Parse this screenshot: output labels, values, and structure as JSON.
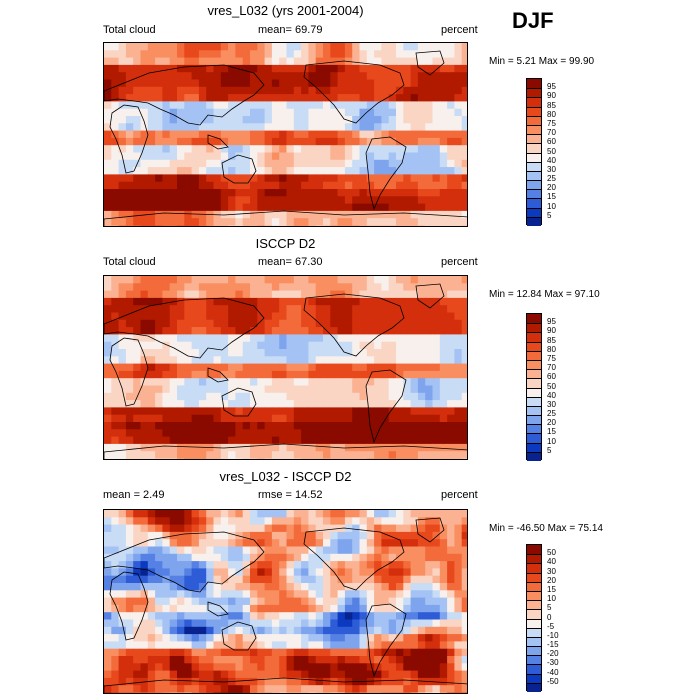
{
  "season": "DJF",
  "panels": [
    {
      "title": "vres_L032 (yrs 2001-2004)",
      "left_label": "Total cloud",
      "mid_label": "mean=  69.79",
      "right_label": "percent",
      "minmax": "Min =   5.21 Max =  99.90",
      "kind": "model",
      "colorbar_labels": [
        "95",
        "90",
        "85",
        "80",
        "75",
        "70",
        "60",
        "50",
        "40",
        "30",
        "25",
        "20",
        "15",
        "10",
        "5"
      ],
      "colorbar_colors": [
        "#8b0a00",
        "#b21a00",
        "#d42f0d",
        "#e8491c",
        "#f36b3a",
        "#f98e60",
        "#fbb292",
        "#fbd5c4",
        "#f8f0ec",
        "#c8dcf5",
        "#a4c2f4",
        "#7fa4ee",
        "#5681e4",
        "#2e5cd6",
        "#0b39c0",
        "#08238f"
      ]
    },
    {
      "title": "ISCCP D2",
      "left_label": "Total cloud",
      "mid_label": "mean=  67.30",
      "right_label": "percent",
      "minmax": "Min =  12.84 Max =  97.10",
      "kind": "obs",
      "colorbar_labels": [
        "95",
        "90",
        "85",
        "80",
        "75",
        "70",
        "60",
        "50",
        "40",
        "30",
        "25",
        "20",
        "15",
        "10",
        "5"
      ],
      "colorbar_colors": [
        "#8b0a00",
        "#b21a00",
        "#d42f0d",
        "#e8491c",
        "#f36b3a",
        "#f98e60",
        "#fbb292",
        "#fbd5c4",
        "#f8f0ec",
        "#c8dcf5",
        "#a4c2f4",
        "#7fa4ee",
        "#5681e4",
        "#2e5cd6",
        "#0b39c0",
        "#08238f"
      ]
    },
    {
      "title": "vres_L032 - ISCCP D2",
      "left_label": "mean =   2.49",
      "mid_label": "rmse =  14.52",
      "right_label": "percent",
      "minmax": "Min = -46.50 Max =  75.14",
      "kind": "diff",
      "colorbar_labels": [
        "50",
        "40",
        "30",
        "20",
        "15",
        "10",
        "5",
        "0",
        "-5",
        "-10",
        "-15",
        "-20",
        "-30",
        "-40",
        "-50"
      ],
      "colorbar_colors": [
        "#8b0a00",
        "#b21a00",
        "#d42f0d",
        "#e8491c",
        "#f36b3a",
        "#f98e60",
        "#fbb292",
        "#fbd5c4",
        "#f8f0ec",
        "#c8dcf5",
        "#a4c2f4",
        "#7fa4ee",
        "#5681e4",
        "#2e5cd6",
        "#0b39c0",
        "#08238f"
      ]
    }
  ]
}
